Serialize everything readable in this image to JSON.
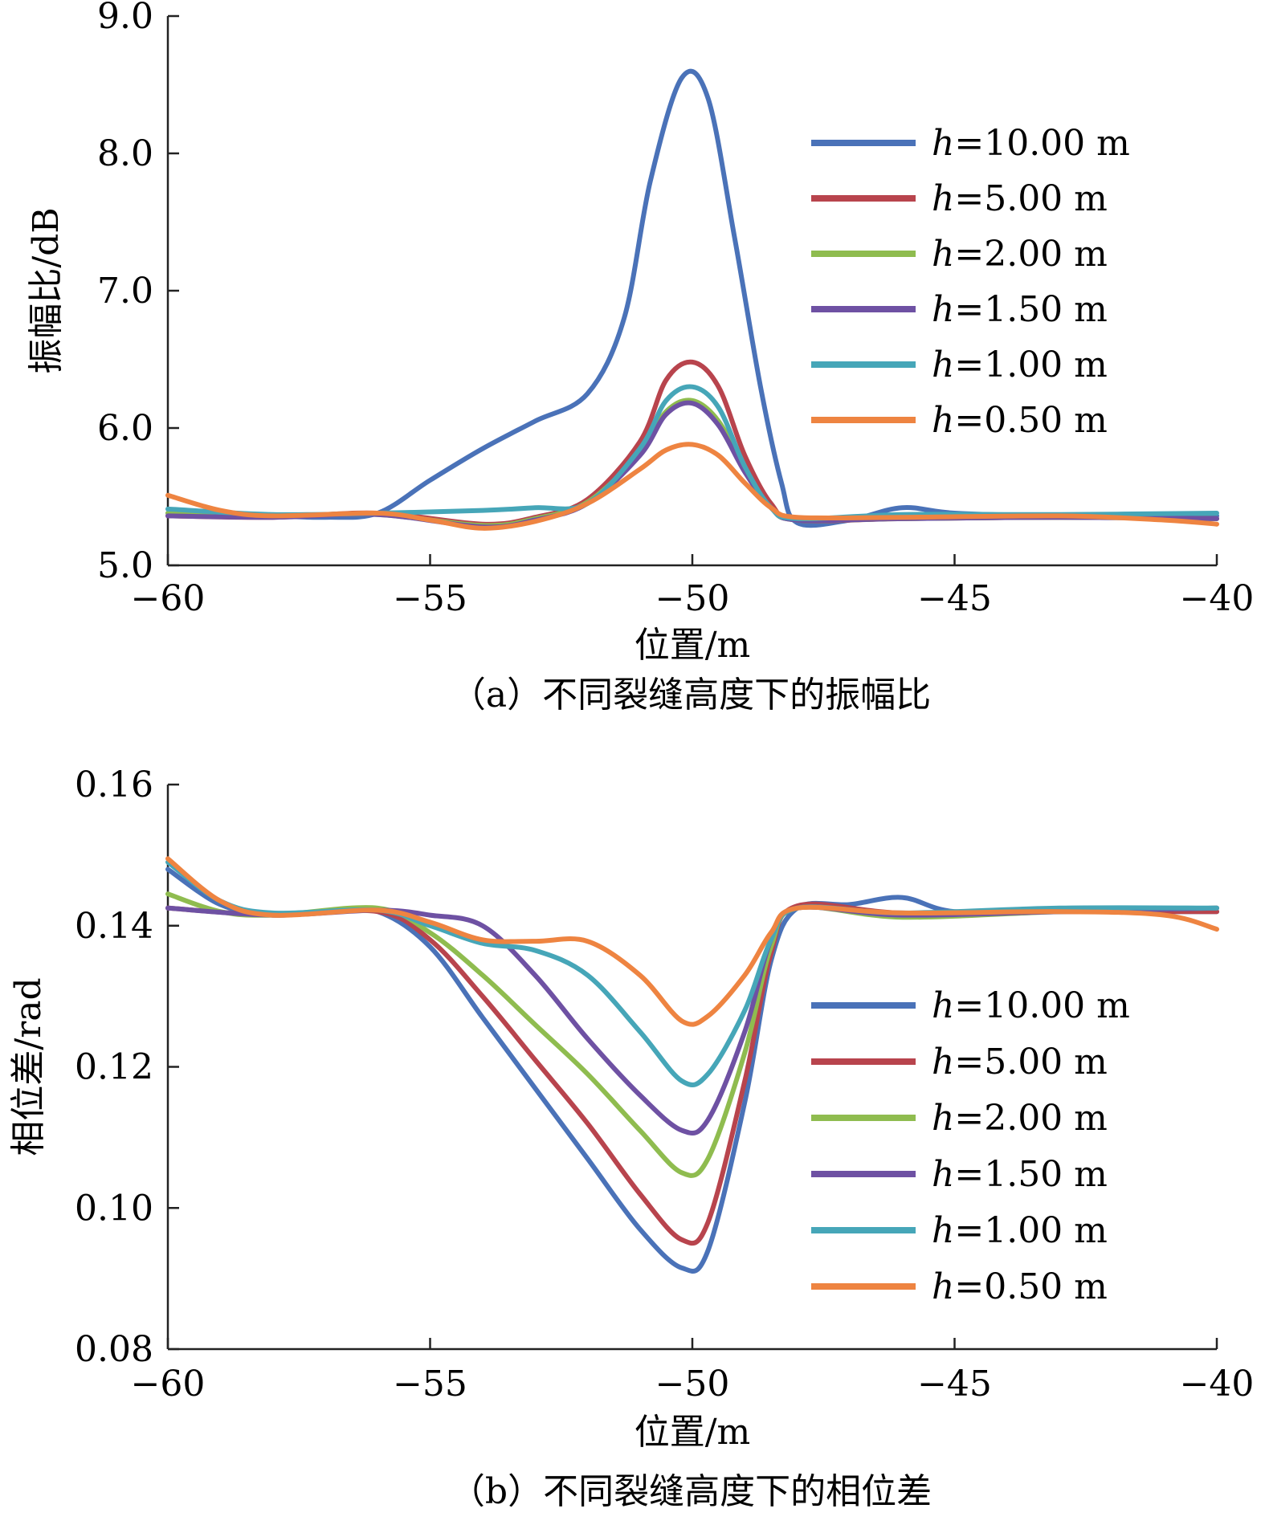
{
  "chart_data": [
    {
      "type": "line",
      "caption": "（a）不同裂缝高度下的振幅比",
      "xlabel": "位置/m",
      "ylabel": "振幅比/dB",
      "xlim": [
        -60,
        -40
      ],
      "ylim": [
        5.0,
        9.0
      ],
      "xticks": [
        -60,
        -55,
        -50,
        -45,
        -40
      ],
      "xtick_labels": [
        "−60",
        "−55",
        "−50",
        "−45",
        "−40"
      ],
      "yticks": [
        5.0,
        6.0,
        7.0,
        8.0,
        9.0
      ],
      "ytick_labels": [
        "5.0",
        "6.0",
        "7.0",
        "8.0",
        "9.0"
      ],
      "grid": false,
      "legend_position": "right",
      "legend_labels": [
        {
          "var": "h",
          "text": "=10.00 m"
        },
        {
          "var": "h",
          "text": "=5.00 m"
        },
        {
          "var": "h",
          "text": "=2.00 m"
        },
        {
          "var": "h",
          "text": "=1.50 m"
        },
        {
          "var": "h",
          "text": "=1.00 m"
        },
        {
          "var": "h",
          "text": "=0.50 m"
        }
      ],
      "series": [
        {
          "color": "#4a72b8",
          "points": [
            [
              -60,
              5.38
            ],
            [
              -58,
              5.36
            ],
            [
              -57,
              5.35
            ],
            [
              -56,
              5.38
            ],
            [
              -55,
              5.62
            ],
            [
              -54,
              5.85
            ],
            [
              -53,
              6.05
            ],
            [
              -52,
              6.25
            ],
            [
              -51.3,
              6.8
            ],
            [
              -50.8,
              7.8
            ],
            [
              -50.2,
              8.55
            ],
            [
              -49.7,
              8.4
            ],
            [
              -49.2,
              7.4
            ],
            [
              -48.7,
              6.3
            ],
            [
              -48.3,
              5.6
            ],
            [
              -48,
              5.31
            ],
            [
              -47,
              5.33
            ],
            [
              -46,
              5.42
            ],
            [
              -45,
              5.38
            ],
            [
              -43,
              5.36
            ],
            [
              -40,
              5.36
            ]
          ]
        },
        {
          "color": "#b8444d",
          "points": [
            [
              -60,
              5.36
            ],
            [
              -58,
              5.35
            ],
            [
              -56,
              5.38
            ],
            [
              -54,
              5.3
            ],
            [
              -53,
              5.35
            ],
            [
              -52,
              5.48
            ],
            [
              -51,
              5.9
            ],
            [
              -50.5,
              6.35
            ],
            [
              -50,
              6.48
            ],
            [
              -49.5,
              6.3
            ],
            [
              -49,
              5.8
            ],
            [
              -48.5,
              5.45
            ],
            [
              -48,
              5.33
            ],
            [
              -46,
              5.34
            ],
            [
              -43,
              5.35
            ],
            [
              -40,
              5.34
            ]
          ]
        },
        {
          "color": "#8fbc4f",
          "points": [
            [
              -60,
              5.38
            ],
            [
              -58,
              5.36
            ],
            [
              -56,
              5.37
            ],
            [
              -54,
              5.29
            ],
            [
              -53,
              5.34
            ],
            [
              -52,
              5.46
            ],
            [
              -51,
              5.82
            ],
            [
              -50.5,
              6.12
            ],
            [
              -50,
              6.2
            ],
            [
              -49.5,
              6.05
            ],
            [
              -49,
              5.7
            ],
            [
              -48.5,
              5.42
            ],
            [
              -48,
              5.33
            ],
            [
              -46,
              5.34
            ],
            [
              -43,
              5.35
            ],
            [
              -40,
              5.34
            ]
          ]
        },
        {
          "color": "#6e51a3",
          "points": [
            [
              -60,
              5.36
            ],
            [
              -58,
              5.35
            ],
            [
              -56,
              5.37
            ],
            [
              -54,
              5.28
            ],
            [
              -53,
              5.33
            ],
            [
              -52,
              5.45
            ],
            [
              -51,
              5.8
            ],
            [
              -50.5,
              6.1
            ],
            [
              -50,
              6.18
            ],
            [
              -49.5,
              6.02
            ],
            [
              -49,
              5.68
            ],
            [
              -48.5,
              5.42
            ],
            [
              -48,
              5.33
            ],
            [
              -46,
              5.34
            ],
            [
              -43,
              5.35
            ],
            [
              -40,
              5.34
            ]
          ]
        },
        {
          "color": "#46a6b8",
          "points": [
            [
              -60,
              5.41
            ],
            [
              -58,
              5.37
            ],
            [
              -56,
              5.38
            ],
            [
              -54,
              5.4
            ],
            [
              -53,
              5.42
            ],
            [
              -52,
              5.45
            ],
            [
              -51,
              5.85
            ],
            [
              -50.5,
              6.2
            ],
            [
              -50,
              6.3
            ],
            [
              -49.5,
              6.15
            ],
            [
              -49,
              5.72
            ],
            [
              -48.5,
              5.42
            ],
            [
              -48,
              5.34
            ],
            [
              -46,
              5.37
            ],
            [
              -43,
              5.37
            ],
            [
              -40,
              5.38
            ]
          ]
        },
        {
          "color": "#ee8441",
          "points": [
            [
              -60,
              5.51
            ],
            [
              -59,
              5.4
            ],
            [
              -58,
              5.36
            ],
            [
              -56,
              5.38
            ],
            [
              -55,
              5.33
            ],
            [
              -54,
              5.27
            ],
            [
              -53,
              5.32
            ],
            [
              -52,
              5.45
            ],
            [
              -51,
              5.7
            ],
            [
              -50.5,
              5.84
            ],
            [
              -50,
              5.88
            ],
            [
              -49.5,
              5.8
            ],
            [
              -49,
              5.6
            ],
            [
              -48.5,
              5.42
            ],
            [
              -48,
              5.35
            ],
            [
              -46,
              5.35
            ],
            [
              -43,
              5.36
            ],
            [
              -41,
              5.33
            ],
            [
              -40,
              5.3
            ]
          ]
        }
      ]
    },
    {
      "type": "line",
      "caption": "（b）不同裂缝高度下的相位差",
      "xlabel": "位置/m",
      "ylabel": "相位差/rad",
      "xlim": [
        -60,
        -40
      ],
      "ylim": [
        0.08,
        0.16
      ],
      "xticks": [
        -60,
        -55,
        -50,
        -45,
        -40
      ],
      "xtick_labels": [
        "−60",
        "−55",
        "−50",
        "−45",
        "−40"
      ],
      "yticks": [
        0.08,
        0.1,
        0.12,
        0.14,
        0.16
      ],
      "ytick_labels": [
        "0.08",
        "0.10",
        "0.12",
        "0.14",
        "0.16"
      ],
      "grid": false,
      "legend_position": "right",
      "legend_labels": [
        {
          "var": "h",
          "text": "=10.00 m"
        },
        {
          "var": "h",
          "text": "=5.00 m"
        },
        {
          "var": "h",
          "text": "=2.00 m"
        },
        {
          "var": "h",
          "text": "=1.50 m"
        },
        {
          "var": "h",
          "text": "=1.00 m"
        },
        {
          "var": "h",
          "text": "=0.50 m"
        }
      ],
      "series": [
        {
          "color": "#4a72b8",
          "points": [
            [
              -60,
              0.148
            ],
            [
              -59,
              0.143
            ],
            [
              -58,
              0.1415
            ],
            [
              -57,
              0.142
            ],
            [
              -56,
              0.142
            ],
            [
              -55,
              0.137
            ],
            [
              -54,
              0.127
            ],
            [
              -53,
              0.117
            ],
            [
              -52,
              0.107
            ],
            [
              -51,
              0.097
            ],
            [
              -50.2,
              0.0915
            ],
            [
              -49.7,
              0.094
            ],
            [
              -49,
              0.115
            ],
            [
              -48.5,
              0.135
            ],
            [
              -48,
              0.1425
            ],
            [
              -47,
              0.143
            ],
            [
              -46,
              0.144
            ],
            [
              -45,
              0.142
            ],
            [
              -43,
              0.142
            ],
            [
              -40,
              0.142
            ]
          ]
        },
        {
          "color": "#b8444d",
          "points": [
            [
              -60,
              0.1425
            ],
            [
              -58,
              0.1415
            ],
            [
              -56,
              0.142
            ],
            [
              -55,
              0.138
            ],
            [
              -54,
              0.13
            ],
            [
              -53,
              0.121
            ],
            [
              -52,
              0.112
            ],
            [
              -51,
              0.102
            ],
            [
              -50.2,
              0.0955
            ],
            [
              -49.7,
              0.098
            ],
            [
              -49,
              0.118
            ],
            [
              -48.5,
              0.136
            ],
            [
              -48,
              0.1428
            ],
            [
              -46,
              0.1418
            ],
            [
              -43,
              0.142
            ],
            [
              -40,
              0.142
            ]
          ]
        },
        {
          "color": "#8fbc4f",
          "points": [
            [
              -60,
              0.1445
            ],
            [
              -59,
              0.142
            ],
            [
              -58,
              0.1415
            ],
            [
              -56,
              0.1425
            ],
            [
              -55,
              0.139
            ],
            [
              -54,
              0.133
            ],
            [
              -53,
              0.126
            ],
            [
              -52,
              0.119
            ],
            [
              -51,
              0.111
            ],
            [
              -50.2,
              0.105
            ],
            [
              -49.7,
              0.107
            ],
            [
              -49,
              0.122
            ],
            [
              -48.5,
              0.137
            ],
            [
              -48,
              0.1425
            ],
            [
              -46,
              0.1412
            ],
            [
              -43,
              0.142
            ],
            [
              -40,
              0.1425
            ]
          ]
        },
        {
          "color": "#6e51a3",
          "points": [
            [
              -60,
              0.1425
            ],
            [
              -58,
              0.1415
            ],
            [
              -56,
              0.1422
            ],
            [
              -55,
              0.1415
            ],
            [
              -54,
              0.14
            ],
            [
              -53,
              0.133
            ],
            [
              -52,
              0.124
            ],
            [
              -51,
              0.116
            ],
            [
              -50.2,
              0.111
            ],
            [
              -49.7,
              0.1125
            ],
            [
              -49,
              0.125
            ],
            [
              -48.5,
              0.138
            ],
            [
              -48,
              0.1425
            ],
            [
              -46,
              0.1415
            ],
            [
              -43,
              0.142
            ],
            [
              -40,
              0.1425
            ]
          ]
        },
        {
          "color": "#46a6b8",
          "points": [
            [
              -60,
              0.149
            ],
            [
              -59,
              0.1435
            ],
            [
              -58,
              0.1418
            ],
            [
              -56,
              0.1422
            ],
            [
              -55,
              0.14
            ],
            [
              -54,
              0.1375
            ],
            [
              -53,
              0.1365
            ],
            [
              -52,
              0.133
            ],
            [
              -51,
              0.125
            ],
            [
              -50.2,
              0.118
            ],
            [
              -49.7,
              0.119
            ],
            [
              -49,
              0.128
            ],
            [
              -48.5,
              0.138
            ],
            [
              -48,
              0.1425
            ],
            [
              -46,
              0.1418
            ],
            [
              -43,
              0.1425
            ],
            [
              -40,
              0.1425
            ]
          ]
        },
        {
          "color": "#ee8441",
          "points": [
            [
              -60,
              0.1495
            ],
            [
              -59,
              0.1435
            ],
            [
              -58,
              0.1415
            ],
            [
              -56,
              0.1422
            ],
            [
              -55,
              0.1405
            ],
            [
              -54,
              0.138
            ],
            [
              -53,
              0.1378
            ],
            [
              -52,
              0.1378
            ],
            [
              -51,
              0.133
            ],
            [
              -50.2,
              0.1265
            ],
            [
              -49.7,
              0.1272
            ],
            [
              -49,
              0.133
            ],
            [
              -48.5,
              0.139
            ],
            [
              -48,
              0.1425
            ],
            [
              -46,
              0.1418
            ],
            [
              -43,
              0.142
            ],
            [
              -41,
              0.1415
            ],
            [
              -40,
              0.1395
            ]
          ]
        }
      ]
    }
  ]
}
